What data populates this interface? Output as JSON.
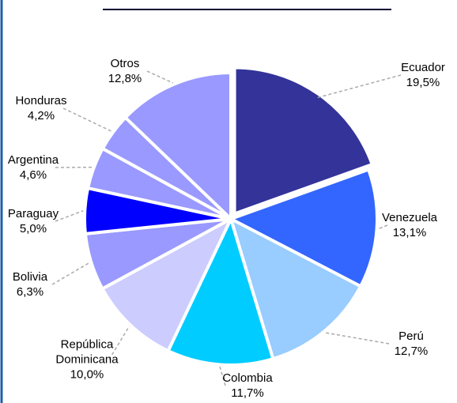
{
  "chart_data": {
    "type": "pie",
    "categories": [
      "Ecuador",
      "Venezuela",
      "Perú",
      "Colombia",
      "República Dominicana",
      "Bolivia",
      "Paraguay",
      "Argentina",
      "Honduras",
      "Otros"
    ],
    "values": [
      19.5,
      13.1,
      12.7,
      11.7,
      10.0,
      6.3,
      5.0,
      4.6,
      4.2,
      12.8
    ],
    "value_labels": [
      "19,5%",
      "13,1%",
      "12,7%",
      "11,7%",
      "10,0%",
      "6,3%",
      "5,0%",
      "4,6%",
      "4,2%",
      "12,8%"
    ],
    "colors": [
      "#333399",
      "#3366ff",
      "#99ccff",
      "#00ccff",
      "#ccccff",
      "#9999ff",
      "#0000ff",
      "#9999ff",
      "#9999ff",
      "#9999ff"
    ]
  }
}
